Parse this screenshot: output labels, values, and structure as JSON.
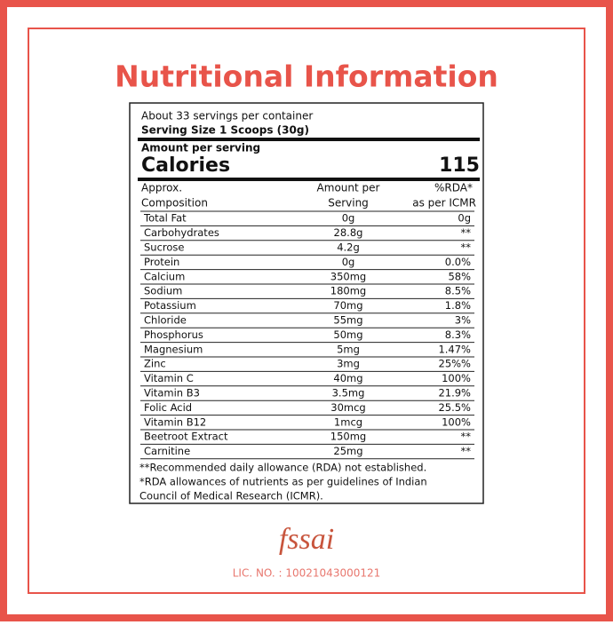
{
  "header": {
    "title": "Nutritional Information"
  },
  "label": {
    "servings": "About 33 servings per container",
    "serving_size": "Serving Size  1 Scoops (30g)",
    "amount_per_serving": "Amount per serving",
    "calories_label": "Calories",
    "calories_value": "115",
    "columns": [
      [
        "Approx.",
        "Composition"
      ],
      [
        "Amount per",
        "Serving"
      ],
      [
        "%RDA*",
        "as per ICMR"
      ]
    ],
    "rows": [
      [
        "Total Fat",
        "0g",
        "0g"
      ],
      [
        "Carbohydrates",
        "28.8g",
        "**"
      ],
      [
        "Sucrose",
        "4.2g",
        "**"
      ],
      [
        "Protein",
        "0g",
        "0.0%"
      ],
      [
        "Calcium",
        "350mg",
        "58%"
      ],
      [
        "Sodium",
        "180mg",
        "8.5%"
      ],
      [
        "Potassium",
        "70mg",
        "1.8%"
      ],
      [
        "Chloride",
        "55mg",
        "3%"
      ],
      [
        "Phosphorus",
        "50mg",
        "8.3%"
      ],
      [
        "Magnesium",
        "5mg",
        "1.47%"
      ],
      [
        "Zinc",
        "3mg",
        "25%%"
      ],
      [
        "Vitamin C",
        "40mg",
        "100%"
      ],
      [
        "Vitamin B3",
        "3.5mg",
        "21.9%"
      ],
      [
        "Folic Acid",
        "30mcg",
        "25.5%"
      ],
      [
        "Vitamin B12",
        "1mcg",
        "100%"
      ],
      [
        "Beetroot Extract",
        "150mg",
        "**"
      ],
      [
        "Carnitine",
        "25mg",
        "**"
      ]
    ],
    "footnotes": [
      "**Recommended daily allowance (RDA) not established.",
      "*RDA allowances of nutrients as per guidelines of Indian",
      "Council of Medical Research (ICMR)."
    ]
  },
  "footer": {
    "logo": "fssai",
    "license": "LIC. NO. : 10021043000121"
  }
}
